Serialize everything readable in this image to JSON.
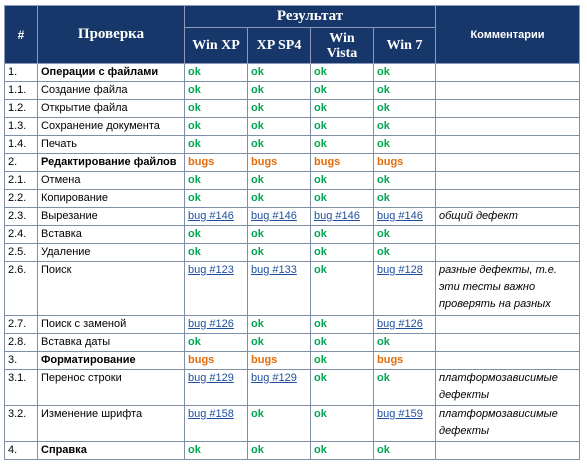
{
  "header": {
    "num": "#",
    "check": "Проверка",
    "result": "Результат",
    "os": [
      "Win XP",
      "XP SP4",
      "Win Vista",
      "Win 7"
    ],
    "comments": "Комментарии"
  },
  "rows": [
    {
      "num": "1.",
      "name": "Операции с файлами",
      "bold": true,
      "cells": [
        {
          "text": "ok",
          "type": "ok"
        },
        {
          "text": "ok",
          "type": "ok"
        },
        {
          "text": "ok",
          "type": "ok"
        },
        {
          "text": "ok",
          "type": "ok"
        }
      ],
      "comment": ""
    },
    {
      "num": "1.1.",
      "name": "Создание файла",
      "cells": [
        {
          "text": "ok",
          "type": "ok"
        },
        {
          "text": "ok",
          "type": "ok"
        },
        {
          "text": "ok",
          "type": "ok"
        },
        {
          "text": "ok",
          "type": "ok"
        }
      ],
      "comment": ""
    },
    {
      "num": "1.2.",
      "name": "Открытие файла",
      "cells": [
        {
          "text": "ok",
          "type": "ok"
        },
        {
          "text": "ok",
          "type": "ok"
        },
        {
          "text": "ok",
          "type": "ok"
        },
        {
          "text": "ok",
          "type": "ok"
        }
      ],
      "comment": ""
    },
    {
      "num": "1.3.",
      "name": "Сохранение документа",
      "cells": [
        {
          "text": "ok",
          "type": "ok"
        },
        {
          "text": "ok",
          "type": "ok"
        },
        {
          "text": "ok",
          "type": "ok"
        },
        {
          "text": "ok",
          "type": "ok"
        }
      ],
      "comment": ""
    },
    {
      "num": "1.4.",
      "name": "Печать",
      "cells": [
        {
          "text": "ok",
          "type": "ok"
        },
        {
          "text": "ok",
          "type": "ok"
        },
        {
          "text": "ok",
          "type": "ok"
        },
        {
          "text": "ok",
          "type": "ok"
        }
      ],
      "comment": ""
    },
    {
      "num": "2.",
      "name": "Редактирование файлов",
      "bold": true,
      "cells": [
        {
          "text": "bugs",
          "type": "bugs"
        },
        {
          "text": "bugs",
          "type": "bugs"
        },
        {
          "text": "bugs",
          "type": "bugs"
        },
        {
          "text": "bugs",
          "type": "bugs"
        }
      ],
      "comment": ""
    },
    {
      "num": "2.1.",
      "name": "Отмена",
      "cells": [
        {
          "text": "ok",
          "type": "ok"
        },
        {
          "text": "ok",
          "type": "ok"
        },
        {
          "text": "ok",
          "type": "ok"
        },
        {
          "text": "ok",
          "type": "ok"
        }
      ],
      "comment": ""
    },
    {
      "num": "2.2.",
      "name": "Копирование",
      "cells": [
        {
          "text": "ok",
          "type": "ok"
        },
        {
          "text": "ok",
          "type": "ok"
        },
        {
          "text": "ok",
          "type": "ok"
        },
        {
          "text": "ok",
          "type": "ok"
        }
      ],
      "comment": ""
    },
    {
      "num": "2.3.",
      "name": "Вырезание",
      "cells": [
        {
          "text": "bug #146",
          "type": "bug"
        },
        {
          "text": "bug #146",
          "type": "bug"
        },
        {
          "text": "bug #146",
          "type": "bug"
        },
        {
          "text": "bug #146",
          "type": "bug"
        }
      ],
      "comment": "общий дефект"
    },
    {
      "num": "2.4.",
      "name": "Вставка",
      "cells": [
        {
          "text": "ok",
          "type": "ok"
        },
        {
          "text": "ok",
          "type": "ok"
        },
        {
          "text": "ok",
          "type": "ok"
        },
        {
          "text": "ok",
          "type": "ok"
        }
      ],
      "comment": ""
    },
    {
      "num": "2.5.",
      "name": "Удаление",
      "cells": [
        {
          "text": "ok",
          "type": "ok"
        },
        {
          "text": "ok",
          "type": "ok"
        },
        {
          "text": "ok",
          "type": "ok"
        },
        {
          "text": "ok",
          "type": "ok"
        }
      ],
      "comment": ""
    },
    {
      "num": "2.6.",
      "name": "Поиск",
      "tall": 2,
      "cells": [
        {
          "text": "bug #123",
          "type": "bug"
        },
        {
          "text": "bug #133",
          "type": "bug"
        },
        {
          "text": "ok",
          "type": "ok"
        },
        {
          "text": "bug #128",
          "type": "bug"
        }
      ],
      "comment": "разные дефекты, т.е. эти тесты важно проверять на разных"
    },
    {
      "num": "2.7.",
      "name": "Поиск с заменой",
      "cells": [
        {
          "text": "bug #126",
          "type": "bug"
        },
        {
          "text": "ok",
          "type": "ok"
        },
        {
          "text": "ok",
          "type": "ok"
        },
        {
          "text": "bug #126",
          "type": "bug"
        }
      ],
      "comment": ""
    },
    {
      "num": "2.8.",
      "name": "Вставка даты",
      "cells": [
        {
          "text": "ok",
          "type": "ok"
        },
        {
          "text": "ok",
          "type": "ok"
        },
        {
          "text": "ok",
          "type": "ok"
        },
        {
          "text": "ok",
          "type": "ok"
        }
      ],
      "comment": ""
    },
    {
      "num": "3.",
      "name": "Форматирование",
      "bold": true,
      "cells": [
        {
          "text": "bugs",
          "type": "bugs"
        },
        {
          "text": "bugs",
          "type": "bugs"
        },
        {
          "text": "ok",
          "type": "ok"
        },
        {
          "text": "bugs",
          "type": "bugs"
        }
      ],
      "comment": ""
    },
    {
      "num": "3.1.",
      "name": "Перенос строки",
      "tall": 1,
      "cells": [
        {
          "text": "bug #129",
          "type": "bug"
        },
        {
          "text": "bug #129",
          "type": "bug"
        },
        {
          "text": "ok",
          "type": "ok"
        },
        {
          "text": "ok",
          "type": "ok"
        }
      ],
      "comment": "платформозависимые дефекты"
    },
    {
      "num": "3.2.",
      "name": "Изменение шрифта",
      "tall": 1,
      "cells": [
        {
          "text": "bug #158",
          "type": "bug"
        },
        {
          "text": "ok",
          "type": "ok"
        },
        {
          "text": "ok",
          "type": "ok"
        },
        {
          "text": "bug #159",
          "type": "bug"
        }
      ],
      "comment": "платформозависимые дефекты"
    },
    {
      "num": "4.",
      "name": "Справка",
      "bold": true,
      "cells": [
        {
          "text": "ok",
          "type": "ok"
        },
        {
          "text": "ok",
          "type": "ok"
        },
        {
          "text": "ok",
          "type": "ok"
        },
        {
          "text": "ok",
          "type": "ok"
        }
      ],
      "comment": ""
    }
  ]
}
